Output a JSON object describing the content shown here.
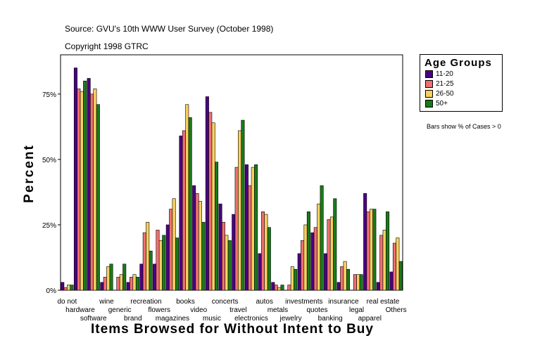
{
  "header": {
    "source": "Source: GVU's 10th WWW User Survey (October 1998)",
    "copyright": "Copyright 1998 GTRC"
  },
  "legend": {
    "title": "Age Groups",
    "items": [
      {
        "label": "11-20",
        "color": "#4b0082"
      },
      {
        "label": "21-25",
        "color": "#f07070"
      },
      {
        "label": "26-50",
        "color": "#f8d060"
      },
      {
        "label": "50+",
        "color": "#1a7a1a"
      }
    ]
  },
  "note": "Bars show % of Cases > 0",
  "chart_data": {
    "type": "bar",
    "xlabel": "Items Browsed for Without Intent to Buy",
    "ylabel": "Percent",
    "ylim": [
      0,
      90
    ],
    "yticks": [
      0,
      25,
      50,
      75
    ],
    "ytick_labels": [
      "0%",
      "25%",
      "50%",
      "75%"
    ],
    "categories": [
      "do not",
      "hardware",
      "software",
      "wine",
      "generic",
      "brand",
      "recreation",
      "flowers",
      "magazines",
      "books",
      "video",
      "music",
      "concerts",
      "travel",
      "electronics",
      "autos",
      "metals",
      "jewelry",
      "investments",
      "quotes",
      "banking",
      "insurance",
      "legal",
      "apparel",
      "real estate",
      "Others"
    ],
    "series": [
      {
        "name": "11-20",
        "values": [
          3,
          85,
          81,
          3,
          0,
          3,
          10,
          10,
          25,
          59,
          40,
          74,
          33,
          29,
          48,
          14,
          3,
          0,
          14,
          22,
          14,
          3,
          0,
          37,
          3,
          7
        ]
      },
      {
        "name": "21-25",
        "values": [
          1,
          77,
          75,
          5,
          5,
          5,
          22,
          23,
          31,
          61,
          37,
          68,
          26,
          47,
          40,
          30,
          2,
          2,
          19,
          24,
          27,
          9,
          6,
          30,
          21,
          18
        ]
      },
      {
        "name": "26-50",
        "values": [
          2,
          76,
          77,
          9,
          6,
          6,
          26,
          19,
          35,
          71,
          34,
          64,
          21,
          61,
          47,
          29,
          1,
          9,
          25,
          33,
          28,
          11,
          6,
          31,
          23,
          20
        ]
      },
      {
        "name": "50+",
        "values": [
          2,
          80,
          71,
          10,
          10,
          5,
          15,
          21,
          20,
          66,
          26,
          49,
          19,
          65,
          48,
          24,
          2,
          8,
          30,
          40,
          35,
          8,
          6,
          31,
          30,
          11
        ]
      }
    ]
  }
}
